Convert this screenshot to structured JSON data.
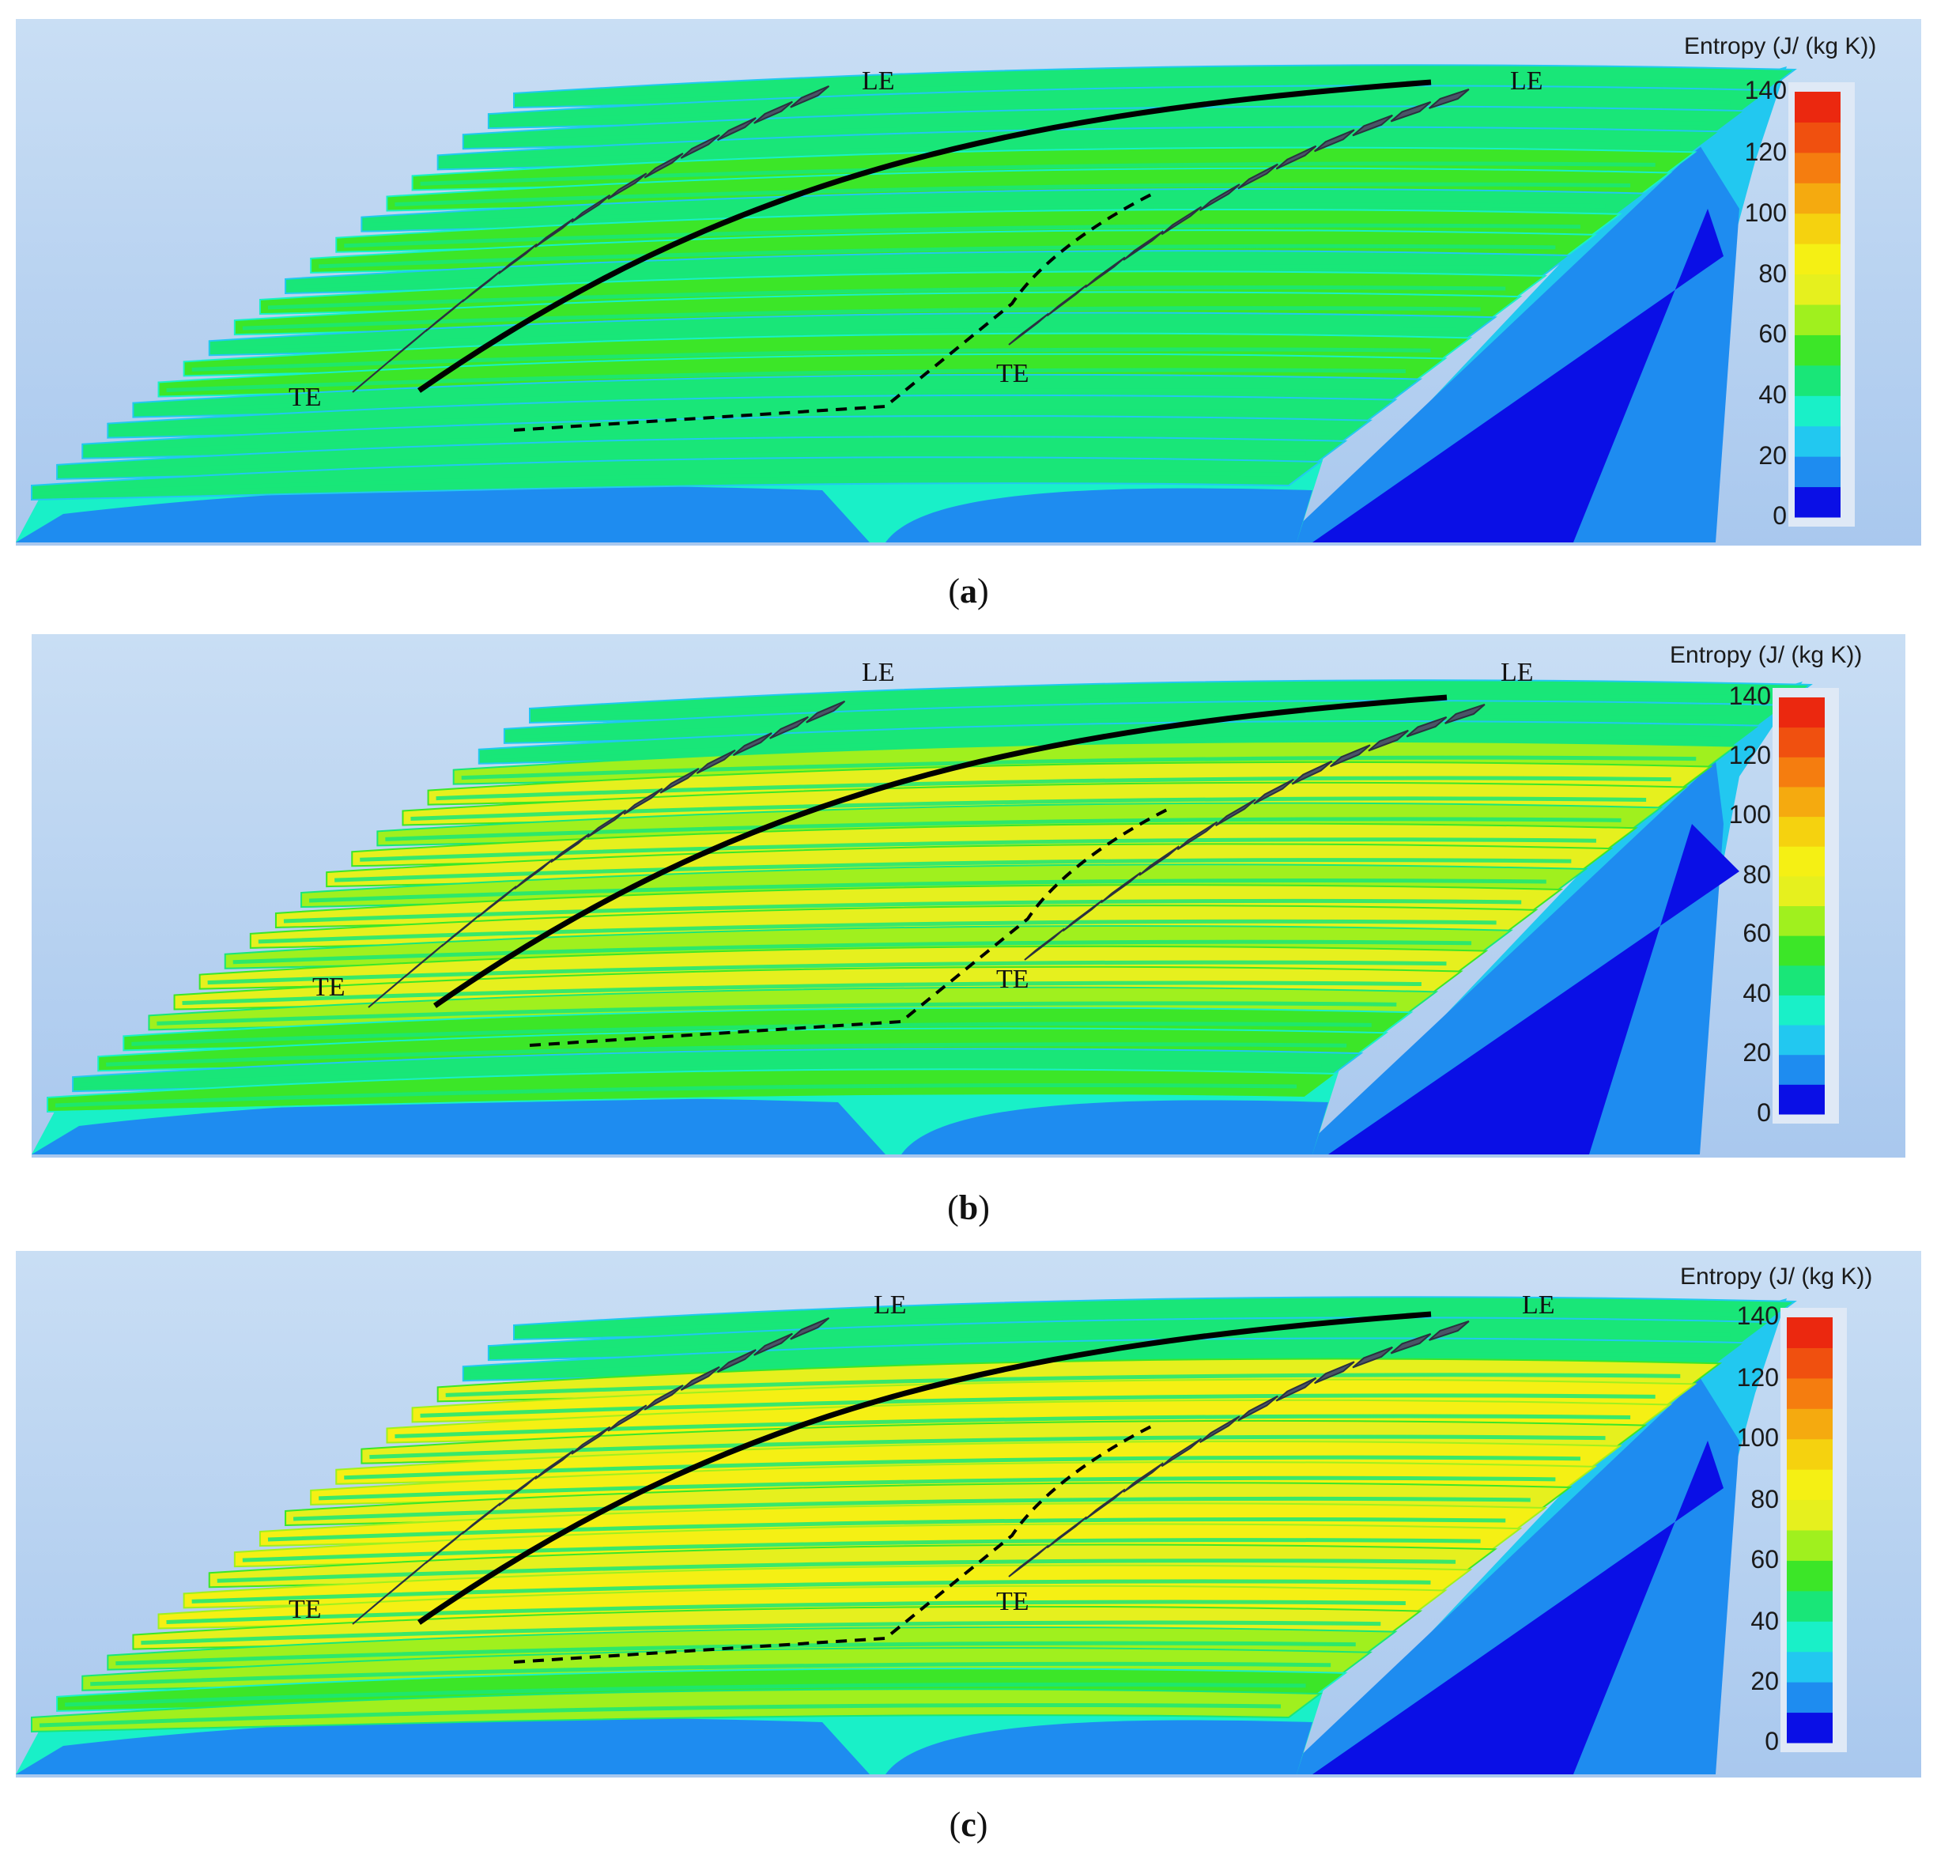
{
  "colorbar": {
    "title": "Entropy (J/ (kg K))",
    "ticks": [
      "140",
      "120",
      "100",
      "80",
      "60",
      "40",
      "20",
      "0"
    ],
    "range": [
      0,
      140
    ],
    "levels": [
      "#0a0fe6",
      "#1e8cf0",
      "#22c8f0",
      "#19f0c8",
      "#19e678",
      "#3ce628",
      "#a0f01e",
      "#e6f01e",
      "#f5f014",
      "#f5d20f",
      "#f5aa0f",
      "#f57d0f",
      "#f0500f",
      "#eb280f"
    ]
  },
  "panels": [
    {
      "caption_letter": "a",
      "le_left": "LE",
      "le_right": "LE",
      "te_left": "TE",
      "te_right": "TE",
      "blade_level": 5
    },
    {
      "caption_letter": "b",
      "le_left": "LE",
      "le_right": "LE",
      "te_left": "TE",
      "te_right": "TE",
      "blade_level": 7
    },
    {
      "caption_letter": "c",
      "le_left": "LE",
      "le_right": "LE",
      "te_left": "TE",
      "te_right": "TE",
      "blade_level": 8
    }
  ],
  "caption_open": "(",
  "caption_close": ")"
}
